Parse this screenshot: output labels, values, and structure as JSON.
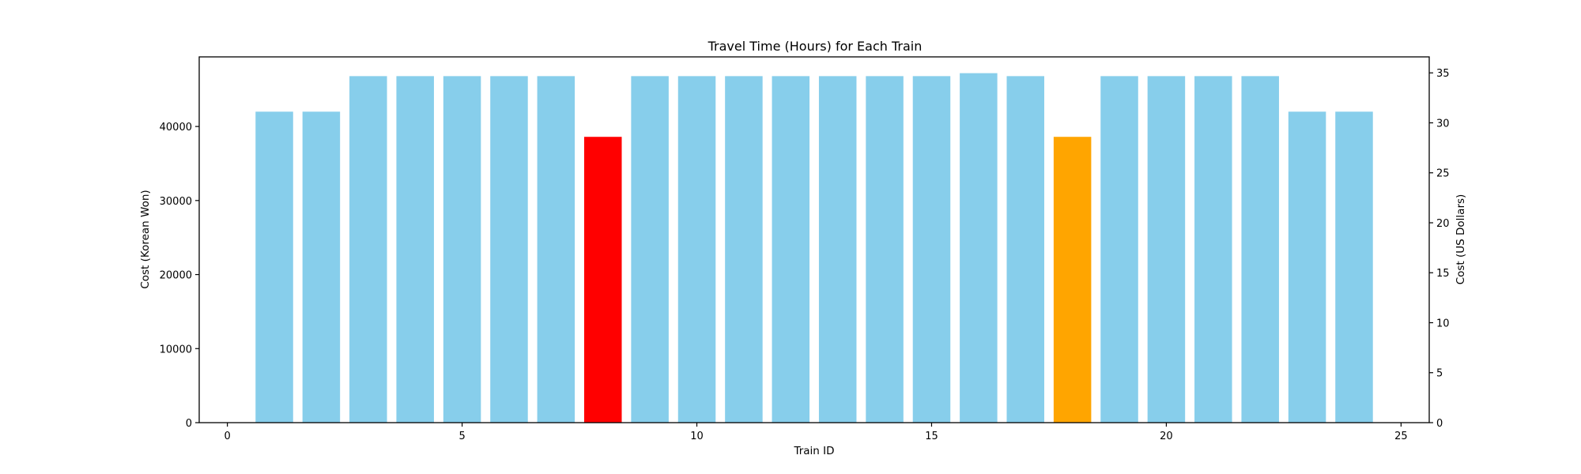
{
  "chart_data": {
    "type": "bar",
    "title": "Travel Time (Hours) for Each Train",
    "xlabel": "Train ID",
    "ylabel": "Cost (Korean Won)",
    "y2label": "Cost (US Dollars)",
    "xlim": [
      -0.6,
      25.6
    ],
    "ylim": [
      0,
      49400
    ],
    "y2lim": [
      0,
      36.6
    ],
    "xticks": [
      0,
      5,
      10,
      15,
      20,
      25
    ],
    "yticks": [
      0,
      10000,
      20000,
      30000,
      40000
    ],
    "y2ticks": [
      0,
      5,
      10,
      15,
      20,
      25,
      30,
      35
    ],
    "x": [
      1,
      2,
      3,
      4,
      5,
      6,
      7,
      8,
      9,
      10,
      11,
      12,
      13,
      14,
      15,
      16,
      17,
      18,
      19,
      20,
      21,
      22,
      23,
      24
    ],
    "values": [
      42000,
      42000,
      46800,
      46800,
      46800,
      46800,
      46800,
      38600,
      46800,
      46800,
      46800,
      46800,
      46800,
      46800,
      46800,
      47200,
      46800,
      38600,
      46800,
      46800,
      46800,
      46800,
      42000,
      42000
    ],
    "colors": [
      "#87ceeb",
      "#87ceeb",
      "#87ceeb",
      "#87ceeb",
      "#87ceeb",
      "#87ceeb",
      "#87ceeb",
      "#ff0000",
      "#87ceeb",
      "#87ceeb",
      "#87ceeb",
      "#87ceeb",
      "#87ceeb",
      "#87ceeb",
      "#87ceeb",
      "#87ceeb",
      "#87ceeb",
      "#ffa500",
      "#87ceeb",
      "#87ceeb",
      "#87ceeb",
      "#87ceeb",
      "#87ceeb",
      "#87ceeb"
    ],
    "grid": false
  }
}
